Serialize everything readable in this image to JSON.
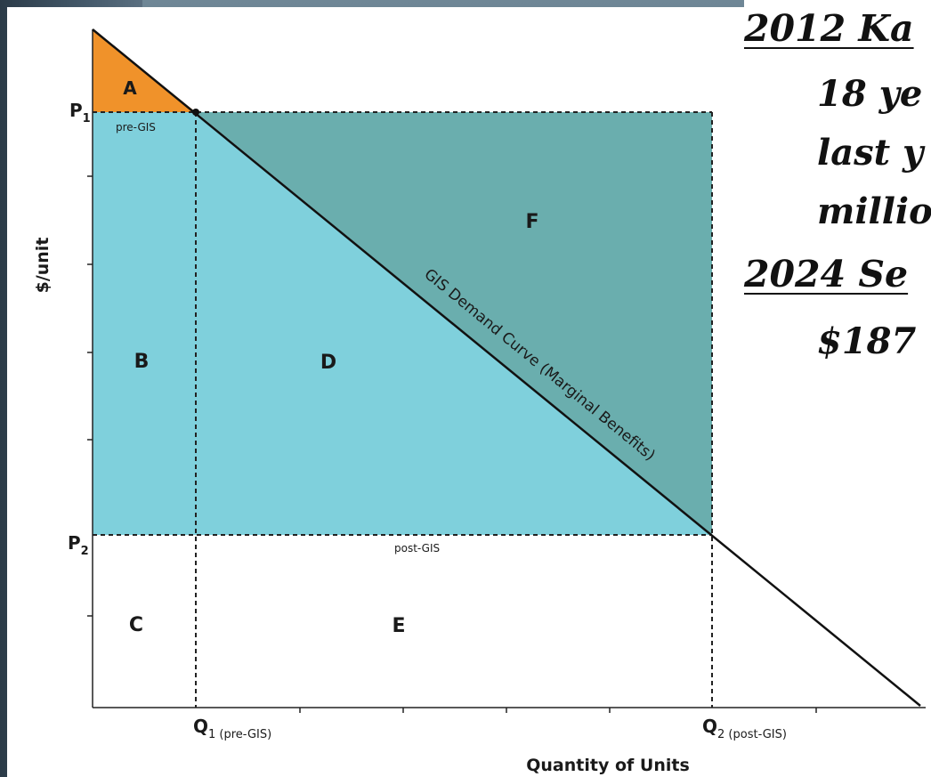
{
  "diagram": {
    "y_axis_label": "$/unit",
    "x_axis_label": "Quantity of Units",
    "price_labels": {
      "p1": "P",
      "p1_sub": "1",
      "p2": "P",
      "p2_sub": "2"
    },
    "quantity_labels": {
      "q1": "Q",
      "q1_sub": "1 (pre-GIS)",
      "q2": "Q",
      "q2_sub": "2 (post-GIS)"
    },
    "line_labels": {
      "pre": "pre-GIS",
      "post": "post-GIS"
    },
    "curve_label": "GIS Demand Curve (Marginal Benefits)",
    "regions": {
      "a": "A",
      "b": "B",
      "c": "C",
      "d": "D",
      "e": "E",
      "f": "F"
    },
    "colors": {
      "region_a": "#f0922a",
      "region_light": "#7fd0dc",
      "region_dark": "#6aaeae",
      "curve": "#111111"
    }
  },
  "side_text": {
    "line1": "2012 Ka",
    "line2": "18 ye",
    "line3": "last y",
    "line4": "millio",
    "line5": "2024 Se",
    "line6": "$187"
  }
}
